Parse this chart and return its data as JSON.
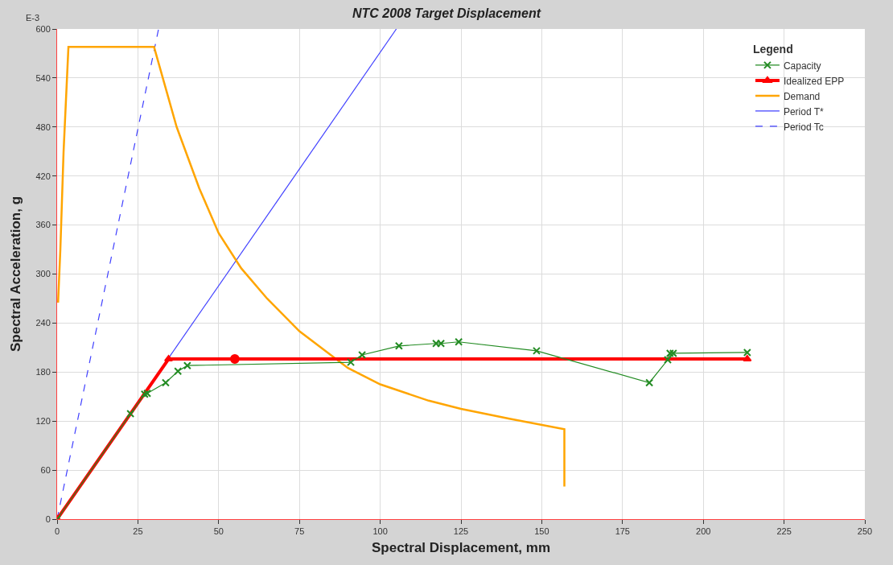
{
  "chart_data": {
    "type": "line",
    "title": "NTC 2008 Target Displacement",
    "xlabel": "Spectral Displacement, mm",
    "ylabel": "Spectral Acceleration, g",
    "legend_title": "Legend",
    "annotations": [
      "E-3"
    ],
    "xlim": [
      0,
      250
    ],
    "xticks": [
      0,
      25,
      50,
      75,
      100,
      125,
      150,
      175,
      200,
      225,
      250
    ],
    "ylim": [
      0,
      600
    ],
    "yticks": [
      0,
      60,
      120,
      180,
      240,
      300,
      360,
      420,
      480,
      540,
      600
    ],
    "grid": true,
    "legend": "top right",
    "series": [
      {
        "name": "Capacity",
        "color": "#228b22",
        "marker": "cross",
        "line_style": "solid",
        "x": [
          0,
          22.7,
          27.1,
          27.9,
          33.6,
          37.4,
          40.3,
          90.9,
          94.4,
          105.8,
          117.3,
          118.8,
          124.3,
          148.4,
          183.3,
          189,
          189.7,
          190.7,
          213.6
        ],
        "values": [
          0,
          129,
          153,
          154,
          167,
          181,
          188,
          192,
          201,
          212,
          215,
          215,
          217,
          206,
          167,
          195,
          203,
          203,
          204
        ]
      },
      {
        "name": "Idealized EPP",
        "color": "#ff0000",
        "marker": "triangle",
        "line_style": "solid",
        "x": [
          0,
          34.5,
          213.6
        ],
        "values": [
          0,
          196,
          196
        ]
      },
      {
        "name": "Demand",
        "color": "#ffa500",
        "marker": "none",
        "line_style": "solid",
        "x": [
          0.3,
          1,
          2,
          3.5,
          30,
          37,
          44,
          50,
          57,
          65,
          75,
          90,
          100,
          115,
          125,
          140,
          157,
          157
        ],
        "values": [
          265,
          330,
          450,
          578,
          578,
          480,
          405,
          350,
          307,
          270,
          230,
          185,
          165,
          145,
          135,
          123,
          110,
          40
        ]
      },
      {
        "name": "Period T*",
        "color": "#4040ff",
        "marker": "none",
        "line_style": "solid",
        "x": [
          0,
          105
        ],
        "values": [
          0,
          600
        ]
      },
      {
        "name": "Period Tc",
        "color": "#4040ff",
        "marker": "none",
        "line_style": "dashed",
        "x": [
          0,
          31.4
        ],
        "values": [
          0,
          600
        ]
      },
      {
        "type": "scatter",
        "color": "#ff0000",
        "marker": "circle",
        "x": [
          55
        ],
        "values": [
          196
        ]
      }
    ]
  }
}
